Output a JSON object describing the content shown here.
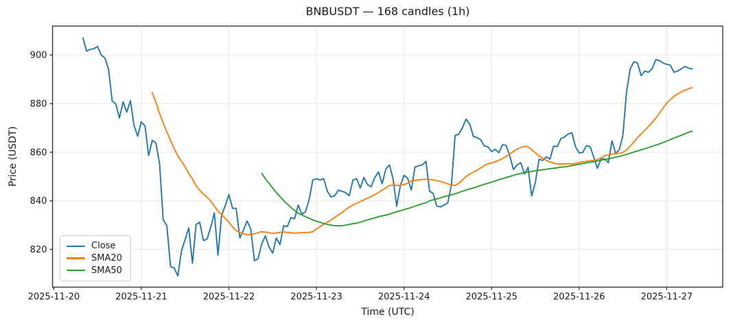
{
  "title": "BNBUSDT — 168 candles (1h)",
  "colors": {
    "close": "#1f77b4",
    "sma20": "#ff7f0e",
    "sma50": "#2ca02c",
    "grid": "#e6e6e6",
    "spine": "#2b2b2b",
    "background": "#ffffff"
  },
  "chart_data": {
    "type": "line",
    "title": "BNBUSDT — 168 candles (1h)",
    "xlabel": "Time (UTC)",
    "ylabel": "Price (USDT)",
    "grid": true,
    "legend_position": "lower left",
    "num_candles": 168,
    "interval": "1h",
    "x_start": "2025-11-20 08:00 UTC",
    "x_step_hours": 1,
    "x_tick_labels": [
      "2025-11-20",
      "2025-11-21",
      "2025-11-22",
      "2025-11-23",
      "2025-11-24",
      "2025-11-25",
      "2025-11-26",
      "2025-11-27"
    ],
    "x_tick_hours": [
      0,
      24,
      48,
      72,
      96,
      120,
      144,
      168
    ],
    "y_ticks": [
      820,
      840,
      860,
      880,
      900
    ],
    "ylim": [
      804.5,
      911.9
    ],
    "xlim_hours": [
      -0.35,
      183.35
    ],
    "series": [
      {
        "name": "Close",
        "color": "#1f77b4",
        "start_index": 0,
        "values": [
          907.0,
          901.6,
          902.3,
          902.6,
          903.5,
          900.0,
          898.8,
          894.3,
          881.2,
          879.8,
          874.1,
          880.7,
          876.5,
          881.2,
          871.0,
          866.6,
          872.5,
          870.8,
          858.6,
          864.9,
          863.8,
          855.3,
          832.2,
          829.8,
          812.9,
          812.4,
          809.1,
          819.4,
          824.0,
          828.9,
          814.3,
          830.3,
          831.2,
          823.7,
          824.2,
          829.0,
          835.0,
          817.6,
          834.1,
          838.0,
          842.6,
          836.9,
          836.9,
          824.7,
          828.0,
          831.7,
          828.4,
          815.3,
          816.2,
          822.3,
          825.6,
          821.0,
          818.5,
          824.7,
          822.0,
          829.8,
          829.4,
          833.1,
          832.6,
          838.3,
          834.5,
          835.5,
          840.6,
          848.6,
          849.1,
          848.6,
          849.1,
          843.9,
          841.6,
          842.1,
          844.4,
          843.9,
          843.4,
          842.1,
          848.6,
          849.1,
          845.3,
          849.6,
          846.7,
          845.8,
          849.6,
          851.9,
          847.0,
          853.0,
          854.8,
          849.1,
          837.8,
          846.3,
          850.5,
          849.3,
          844.4,
          853.9,
          854.4,
          854.8,
          856.2,
          844.0,
          843.0,
          837.8,
          837.5,
          838.3,
          839.2,
          846.7,
          866.9,
          867.4,
          870.0,
          873.6,
          871.6,
          866.5,
          866.0,
          865.2,
          862.6,
          862.2,
          860.3,
          861.2,
          859.8,
          863.1,
          862.8,
          858.4,
          852.9,
          854.8,
          855.7,
          851.0,
          853.8,
          842.0,
          847.5,
          857.1,
          856.6,
          858.1,
          857.1,
          862.5,
          862.3,
          865.6,
          866.3,
          867.5,
          868.0,
          862.3,
          859.7,
          859.9,
          862.7,
          862.3,
          858.0,
          853.4,
          857.1,
          857.3,
          855.7,
          864.7,
          859.5,
          861.0,
          867.0,
          884.9,
          894.3,
          897.2,
          896.7,
          891.5,
          893.4,
          892.9,
          894.3,
          898.1,
          897.7,
          896.7,
          896.2,
          895.8,
          892.9,
          893.4,
          894.3,
          895.3,
          894.6,
          894.3
        ]
      },
      {
        "name": "SMA20",
        "color": "#ff7f0e",
        "start_index": 19,
        "values": [
          884.5,
          880.5,
          876.0,
          872.0,
          868.3,
          864.8,
          861.5,
          858.5,
          856.3,
          854.0,
          851.2,
          849.0,
          846.2,
          844.3,
          842.8,
          841.5,
          840.0,
          837.8,
          835.8,
          834.3,
          832.8,
          831.2,
          829.3,
          827.8,
          827.0,
          826.5,
          826.1,
          826.1,
          826.4,
          826.9,
          827.3,
          827.1,
          826.8,
          826.6,
          826.8,
          827.0,
          827.2,
          827.0,
          826.8,
          826.7,
          826.8,
          826.9,
          827.0,
          827.0,
          827.3,
          828.4,
          829.4,
          830.3,
          831.2,
          832.2,
          833.2,
          834.1,
          835.2,
          836.4,
          837.4,
          838.3,
          839.0,
          839.7,
          840.4,
          841.1,
          841.8,
          842.5,
          843.4,
          844.4,
          845.3,
          846.3,
          846.5,
          846.3,
          846.4,
          846.7,
          847.2,
          848.2,
          848.4,
          848.6,
          848.8,
          848.9,
          848.8,
          848.6,
          848.3,
          848.0,
          847.5,
          847.0,
          846.5,
          846.3,
          847.2,
          848.5,
          850.0,
          851.0,
          851.8,
          852.6,
          853.5,
          854.5,
          855.2,
          855.6,
          856.1,
          856.7,
          857.4,
          858.3,
          859.3,
          860.3,
          861.3,
          862.0,
          862.4,
          862.3,
          861.0,
          859.8,
          858.5,
          857.5,
          856.6,
          856.0,
          855.5,
          855.2,
          855.2,
          855.2,
          855.3,
          855.2,
          855.4,
          855.7,
          856.0,
          856.2,
          856.5,
          856.6,
          857.0,
          857.6,
          858.5,
          858.9,
          859.3,
          859.4,
          859.5,
          860.0,
          860.9,
          862.5,
          864.2,
          866.0,
          867.5,
          869.0,
          870.6,
          872.2,
          874.0,
          876.0,
          878.1,
          880.2,
          881.6,
          883.0,
          884.0,
          884.8,
          885.5,
          886.1,
          886.6
        ]
      },
      {
        "name": "SMA50",
        "color": "#2ca02c",
        "start_index": 49,
        "values": [
          851.3,
          849.0,
          847.2,
          845.3,
          843.4,
          841.8,
          840.1,
          838.7,
          837.3,
          836.0,
          834.9,
          834.2,
          833.5,
          832.8,
          832.1,
          831.6,
          831.2,
          830.7,
          830.3,
          830.0,
          829.8,
          829.7,
          829.8,
          830.0,
          830.3,
          830.6,
          830.8,
          831.2,
          831.7,
          832.2,
          832.6,
          833.0,
          833.5,
          833.8,
          834.1,
          834.5,
          835.0,
          835.5,
          835.9,
          836.4,
          836.8,
          837.3,
          837.8,
          838.3,
          838.8,
          839.2,
          840.0,
          840.4,
          840.8,
          841.2,
          841.7,
          842.1,
          842.5,
          842.9,
          843.4,
          843.9,
          844.4,
          844.9,
          845.3,
          845.8,
          846.3,
          846.8,
          847.2,
          847.7,
          848.2,
          848.7,
          849.1,
          849.6,
          850.0,
          850.5,
          850.9,
          851.3,
          851.6,
          851.9,
          852.1,
          852.4,
          852.6,
          852.8,
          853.0,
          853.2,
          853.4,
          853.6,
          853.8,
          854.0,
          854.2,
          854.5,
          854.8,
          855.0,
          855.3,
          855.6,
          855.9,
          856.1,
          856.4,
          856.7,
          857.0,
          857.3,
          857.6,
          858.0,
          858.3,
          858.7,
          859.1,
          859.6,
          860.1,
          860.5,
          861.0,
          861.4,
          861.9,
          862.4,
          862.9,
          863.4,
          864.0,
          864.6,
          865.2,
          865.8,
          866.4,
          867.0,
          867.6,
          868.2,
          868.7
        ]
      }
    ]
  }
}
